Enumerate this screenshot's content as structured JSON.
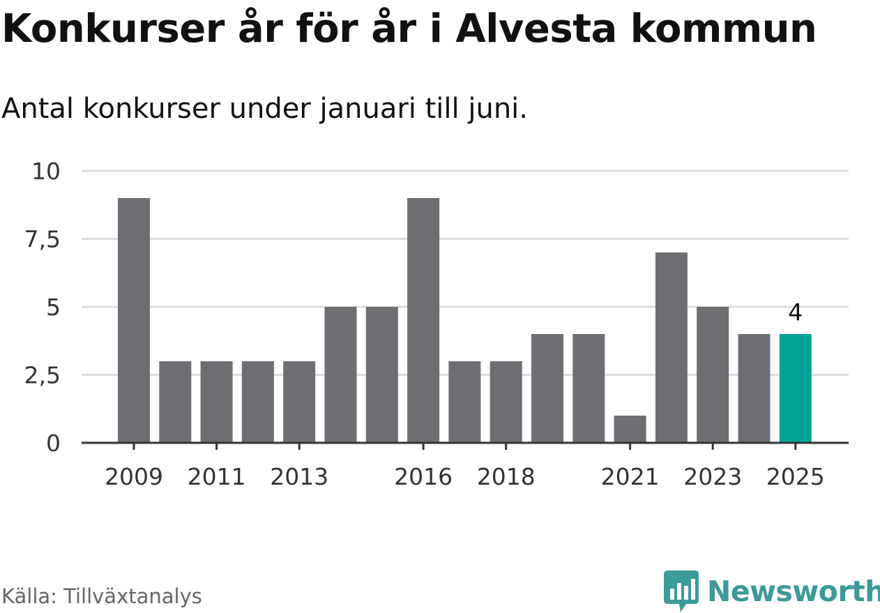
{
  "header": {
    "title": "Konkurser år för år i Alvesta kommun",
    "subtitle": "Antal konkurser under januari till juni."
  },
  "footer": {
    "source": "Källa: Tillväxtanalys",
    "brand": "Newsworthy",
    "brand_icon": "bar-chart-speech-bubble-icon",
    "brand_color": "#3b9b96"
  },
  "chart_data": {
    "type": "bar",
    "categories": [
      "2009",
      "2010",
      "2011",
      "2012",
      "2013",
      "2014",
      "2015",
      "2016",
      "2017",
      "2018",
      "2019",
      "2020",
      "2021",
      "2022",
      "2023",
      "2024",
      "2025"
    ],
    "values": [
      9,
      3,
      3,
      3,
      3,
      5,
      5,
      9,
      3,
      3,
      4,
      4,
      1,
      7,
      5,
      4,
      4
    ],
    "x_tick_labels": [
      "2009",
      "2011",
      "2013",
      "2016",
      "2018",
      "2021",
      "2023",
      "2025"
    ],
    "y_ticks": [
      0,
      2.5,
      5,
      7.5,
      10
    ],
    "y_tick_labels": [
      "0",
      "2,5",
      "5",
      "7,5",
      "10"
    ],
    "ylim": [
      0,
      10
    ],
    "grid": true,
    "bar_color": "#6e6d72",
    "highlight": {
      "category": "2025",
      "color": "#00a497",
      "label": "4"
    },
    "grid_color": "#dddddd",
    "axis_color": "#333333"
  }
}
